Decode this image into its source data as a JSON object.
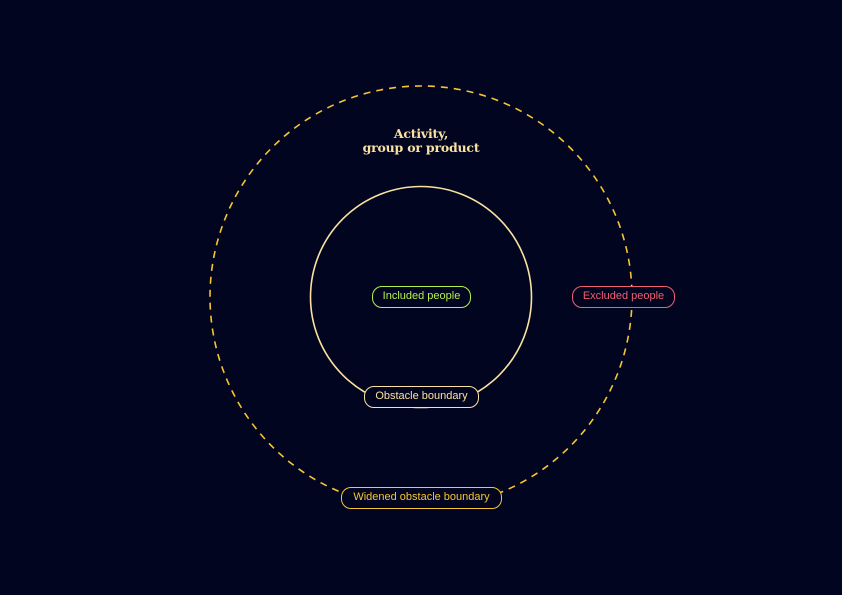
{
  "title": {
    "line1": "Activity,",
    "line2": "group or product"
  },
  "labels": {
    "included": "Included people",
    "excluded": "Excluded people",
    "obstacle": "Obstacle boundary",
    "widened": "Widened obstacle boundary"
  },
  "colors": {
    "background": "#02051f",
    "title": "#fbe2a0",
    "included": "#b5f04e",
    "excluded": "#f25f6e",
    "obstacle": "#fbe2a0",
    "widened": "#f7c531"
  }
}
